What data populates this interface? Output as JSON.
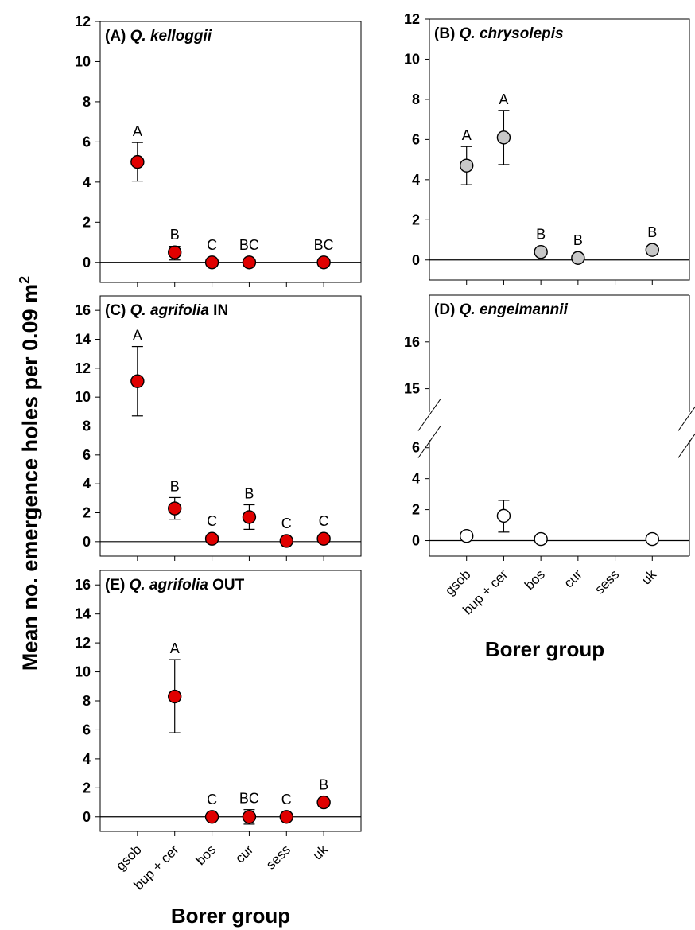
{
  "figure": {
    "y_axis_title": "Mean no. emergence holes per 0.09 m",
    "y_axis_title_superscript": "2",
    "x_axis_title": "Borer group"
  },
  "colors": {
    "red_fill": "#e00000",
    "gray_fill": "#c8c8c8",
    "open_fill": "#ffffff",
    "stroke": "#000000"
  },
  "chart_data": [
    {
      "type": "scatter",
      "panel": "A",
      "title_prefix": "(A) ",
      "title_species": "Q. kelloggii",
      "title_suffix": "",
      "categories": [
        "gsob",
        "bup + cer",
        "bos",
        "cur",
        "sess",
        "uk"
      ],
      "ylim": [
        -1,
        12
      ],
      "yticks": [
        0,
        2,
        4,
        6,
        8,
        10,
        12
      ],
      "marker": "red",
      "points": [
        {
          "category": "gsob",
          "mean": 5.0,
          "err_low": 4.05,
          "err_high": 5.97,
          "letter": "A"
        },
        {
          "category": "bup + cer",
          "mean": 0.5,
          "err_low": 0.12,
          "err_high": 0.8,
          "letter": "B"
        },
        {
          "category": "bos",
          "mean": 0.0,
          "err_low": null,
          "err_high": null,
          "letter": "C"
        },
        {
          "category": "cur",
          "mean": 0.0,
          "err_low": null,
          "err_high": null,
          "letter": "BC"
        },
        {
          "category": "uk",
          "mean": 0.0,
          "err_low": null,
          "err_high": null,
          "letter": "BC"
        }
      ]
    },
    {
      "type": "scatter",
      "panel": "B",
      "title_prefix": "(B) ",
      "title_species": "Q. chrysolepis",
      "title_suffix": "",
      "categories": [
        "gsob",
        "bup + cer",
        "bos",
        "cur",
        "sess",
        "uk"
      ],
      "ylim": [
        -1,
        12
      ],
      "yticks": [
        0,
        2,
        4,
        6,
        8,
        10,
        12
      ],
      "marker": "gray",
      "points": [
        {
          "category": "gsob",
          "mean": 4.7,
          "err_low": 3.75,
          "err_high": 5.65,
          "letter": "A"
        },
        {
          "category": "bup + cer",
          "mean": 6.1,
          "err_low": 4.75,
          "err_high": 7.45,
          "letter": "A"
        },
        {
          "category": "bos",
          "mean": 0.4,
          "err_low": null,
          "err_high": null,
          "letter": "B"
        },
        {
          "category": "cur",
          "mean": 0.1,
          "err_low": null,
          "err_high": null,
          "letter": "B"
        },
        {
          "category": "uk",
          "mean": 0.5,
          "err_low": null,
          "err_high": null,
          "letter": "B"
        }
      ]
    },
    {
      "type": "scatter",
      "panel": "C",
      "title_prefix": "(C) ",
      "title_species": "Q. agrifolia",
      "title_suffix": " IN",
      "categories": [
        "gsob",
        "bup + cer",
        "bos",
        "cur",
        "sess",
        "uk"
      ],
      "ylim": [
        -1,
        17
      ],
      "yticks": [
        0,
        2,
        4,
        6,
        8,
        10,
        12,
        14,
        16
      ],
      "marker": "red",
      "points": [
        {
          "category": "gsob",
          "mean": 11.1,
          "err_low": 8.7,
          "err_high": 13.5,
          "letter": "A"
        },
        {
          "category": "bup + cer",
          "mean": 2.3,
          "err_low": 1.55,
          "err_high": 3.05,
          "letter": "B"
        },
        {
          "category": "bos",
          "mean": 0.2,
          "err_low": null,
          "err_high": null,
          "letter": "C"
        },
        {
          "category": "cur",
          "mean": 1.7,
          "err_low": 0.85,
          "err_high": 2.55,
          "letter": "B"
        },
        {
          "category": "sess",
          "mean": 0.05,
          "err_low": null,
          "err_high": null,
          "letter": "C"
        },
        {
          "category": "uk",
          "mean": 0.2,
          "err_low": null,
          "err_high": null,
          "letter": "C"
        }
      ]
    },
    {
      "type": "scatter",
      "panel": "D",
      "title_prefix": "(D) ",
      "title_species": "Q. engelmannii",
      "title_suffix": "",
      "categories": [
        "gsob",
        "bup + cer",
        "bos",
        "cur",
        "sess",
        "uk"
      ],
      "ylim": [
        -1,
        17
      ],
      "yticks": [
        0,
        2,
        4,
        6,
        15,
        16
      ],
      "y_axis_break": [
        6.5,
        14.5
      ],
      "marker": "open",
      "points": [
        {
          "category": "gsob",
          "mean": 0.3,
          "err_low": null,
          "err_high": null,
          "letter": ""
        },
        {
          "category": "bup + cer",
          "mean": 1.6,
          "err_low": 0.55,
          "err_high": 2.6,
          "letter": ""
        },
        {
          "category": "bos",
          "mean": 0.1,
          "err_low": null,
          "err_high": null,
          "letter": ""
        },
        {
          "category": "uk",
          "mean": 0.1,
          "err_low": null,
          "err_high": null,
          "letter": ""
        }
      ]
    },
    {
      "type": "scatter",
      "panel": "E",
      "title_prefix": "(E) ",
      "title_species": "Q. agrifolia",
      "title_suffix": " OUT",
      "categories": [
        "gsob",
        "bup + cer",
        "bos",
        "cur",
        "sess",
        "uk"
      ],
      "ylim": [
        -1,
        17
      ],
      "yticks": [
        0,
        2,
        4,
        6,
        8,
        10,
        12,
        14,
        16
      ],
      "marker": "red",
      "points": [
        {
          "category": "bup + cer",
          "mean": 8.3,
          "err_low": 5.8,
          "err_high": 10.85,
          "letter": "A"
        },
        {
          "category": "bos",
          "mean": 0.0,
          "err_low": null,
          "err_high": null,
          "letter": "C"
        },
        {
          "category": "cur",
          "mean": 0.0,
          "err_low": -0.5,
          "err_high": 0.5,
          "letter": "BC"
        },
        {
          "category": "sess",
          "mean": 0.0,
          "err_low": null,
          "err_high": null,
          "letter": "C"
        },
        {
          "category": "uk",
          "mean": 1.0,
          "err_low": null,
          "err_high": null,
          "letter": "B"
        }
      ]
    }
  ]
}
